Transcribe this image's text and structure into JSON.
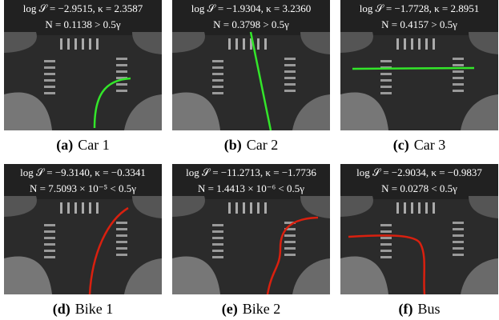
{
  "figure": {
    "panels": [
      {
        "line1": "log 𝒮 = −2.9515, κ = 2.3587",
        "line2": "N = 0.1138 > 0.5γ",
        "label": "(a)",
        "name": "Car 1"
      },
      {
        "line1": "log 𝒮 = −1.9304, κ = 3.2360",
        "line2": "N = 0.3798 > 0.5γ",
        "label": "(b)",
        "name": "Car 2"
      },
      {
        "line1": "log 𝒮 = −1.7728, κ = 2.8951",
        "line2": "N = 0.4157 > 0.5γ",
        "label": "(c)",
        "name": "Car 3"
      },
      {
        "line1": "log 𝒮 = −9.3140, κ = −0.3341",
        "line2": "N = 7.5093 × 10⁻⁵ < 0.5γ",
        "label": "(d)",
        "name": "Bike 1"
      },
      {
        "line1": "log 𝒮 = −11.2713, κ = −1.7736",
        "line2": "N = 1.4413 × 10⁻⁶ < 0.5γ",
        "label": "(e)",
        "name": "Bike 2"
      },
      {
        "line1": "log 𝒮 = −2.9034, κ = −0.9837",
        "line2": "N = 0.0278 < 0.5γ",
        "label": "(f)",
        "name": "Bus"
      }
    ]
  }
}
